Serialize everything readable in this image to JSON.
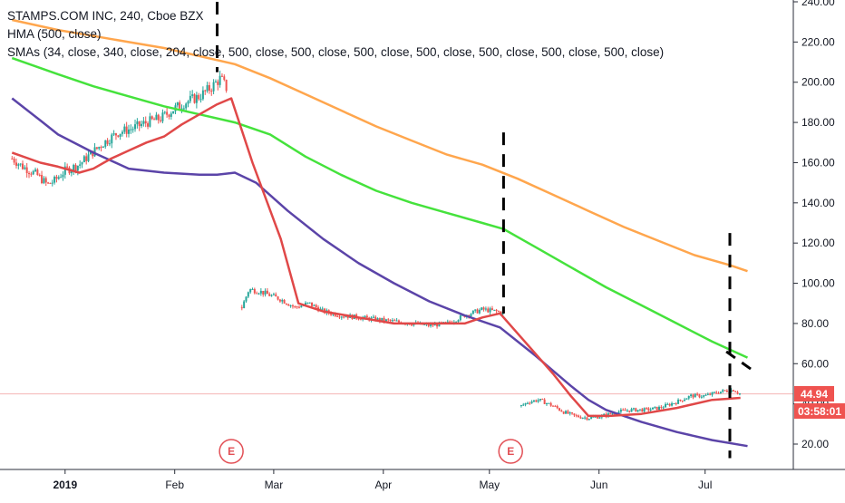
{
  "legend": {
    "symbol_line": "STAMPS.COM INC, 240, Cboe BZX",
    "hma_line": "HMA (500, close)",
    "sma_line": "SMAs (34, close, 340, close, 204, close, 500, close, 500, close, 500, close, 500, close, 500, close, 500, close, 500, close)"
  },
  "colors": {
    "hma": "#e04848",
    "sma_34": "#5b44a8",
    "sma_204": "#45e23c",
    "sma_340": "#ffa64d",
    "candle_up": "#26a69a",
    "candle_down": "#ef5350",
    "price_line": "#f5b5b5",
    "badge": "#ef5350",
    "earnings": "#e24f55"
  },
  "price_badge": {
    "price": "44.94",
    "countdown": "03:58:01"
  },
  "earnings_labels": [
    "E",
    "E"
  ],
  "chart_data": {
    "type": "line",
    "title": "STAMPS.COM INC, 240, Cboe BZX",
    "xlabel": "",
    "ylabel": "",
    "ylim": [
      20,
      240
    ],
    "y_ticks": [
      "240.00",
      "220.00",
      "200.00",
      "180.00",
      "160.00",
      "140.00",
      "120.00",
      "100.00",
      "80.00",
      "60.00",
      "40.00",
      "20.00"
    ],
    "x_ticks": [
      {
        "label": "2019",
        "t": 2,
        "bold": true
      },
      {
        "label": "Feb",
        "t": 33
      },
      {
        "label": "Mar",
        "t": 61
      },
      {
        "label": "Apr",
        "t": 92
      },
      {
        "label": "May",
        "t": 122
      },
      {
        "label": "Jun",
        "t": 153
      },
      {
        "label": "Jul",
        "t": 183
      }
    ],
    "grid": false,
    "last_price": 44.94,
    "price_segments": [
      {
        "points": [
          [
            -13,
            162
          ],
          [
            -10,
            158
          ],
          [
            -6,
            154
          ],
          [
            -3,
            149
          ],
          [
            -1,
            151
          ],
          [
            2,
            156
          ],
          [
            6,
            159
          ],
          [
            9,
            164
          ],
          [
            13,
            170
          ],
          [
            17,
            175
          ],
          [
            21,
            177
          ],
          [
            25,
            180
          ],
          [
            29,
            182
          ],
          [
            33,
            187
          ],
          [
            36,
            190
          ],
          [
            40,
            193
          ],
          [
            43,
            197
          ],
          [
            46,
            202
          ],
          [
            48,
            196
          ]
        ]
      },
      {
        "points": [
          [
            52,
            88
          ],
          [
            54,
            97
          ],
          [
            57,
            96
          ],
          [
            60,
            94
          ],
          [
            63,
            92
          ],
          [
            67,
            88
          ],
          [
            71,
            90
          ],
          [
            75,
            86
          ],
          [
            80,
            84
          ],
          [
            85,
            83
          ],
          [
            90,
            82
          ],
          [
            95,
            81
          ],
          [
            100,
            80
          ],
          [
            105,
            79
          ],
          [
            110,
            80
          ],
          [
            115,
            84
          ],
          [
            120,
            87
          ],
          [
            124,
            86
          ],
          [
            126,
            85
          ]
        ]
      },
      {
        "points": [
          [
            131,
            39
          ],
          [
            133,
            41
          ],
          [
            136,
            42
          ],
          [
            140,
            39
          ],
          [
            143,
            36
          ],
          [
            146,
            34
          ],
          [
            150,
            33
          ],
          [
            154,
            34
          ],
          [
            158,
            36
          ],
          [
            162,
            37
          ],
          [
            166,
            37
          ],
          [
            170,
            38
          ],
          [
            175,
            41
          ],
          [
            179,
            44
          ],
          [
            183,
            44
          ],
          [
            187,
            46
          ],
          [
            191,
            47
          ],
          [
            193,
            44.94
          ]
        ]
      }
    ],
    "series": [
      {
        "name": "HMA (500, close)",
        "key": "hma",
        "points": [
          [
            -13,
            165
          ],
          [
            -5,
            160
          ],
          [
            0,
            158
          ],
          [
            6,
            155
          ],
          [
            10,
            157
          ],
          [
            15,
            162
          ],
          [
            20,
            166
          ],
          [
            25,
            170
          ],
          [
            30,
            173
          ],
          [
            35,
            179
          ],
          [
            40,
            184
          ],
          [
            45,
            189
          ],
          [
            49,
            192
          ],
          [
            55,
            160
          ],
          [
            63,
            122
          ],
          [
            68,
            90
          ],
          [
            75,
            86
          ],
          [
            85,
            83
          ],
          [
            95,
            80
          ],
          [
            105,
            80
          ],
          [
            115,
            80
          ],
          [
            120,
            83
          ],
          [
            125,
            85
          ],
          [
            131,
            73
          ],
          [
            140,
            55
          ],
          [
            145,
            44
          ],
          [
            150,
            34
          ],
          [
            156,
            34
          ],
          [
            165,
            35
          ],
          [
            175,
            38
          ],
          [
            185,
            42
          ],
          [
            193,
            43
          ]
        ]
      },
      {
        "name": "SMA (34, close)",
        "key": "sma_34",
        "points": [
          [
            -13,
            192
          ],
          [
            -5,
            181
          ],
          [
            0,
            174
          ],
          [
            10,
            165
          ],
          [
            20,
            157
          ],
          [
            30,
            155
          ],
          [
            40,
            154
          ],
          [
            45,
            154
          ],
          [
            50,
            155
          ],
          [
            56,
            150
          ],
          [
            65,
            136
          ],
          [
            75,
            122
          ],
          [
            85,
            110
          ],
          [
            95,
            100
          ],
          [
            105,
            91
          ],
          [
            115,
            84
          ],
          [
            125,
            78
          ],
          [
            135,
            64
          ],
          [
            145,
            49
          ],
          [
            150,
            42
          ],
          [
            155,
            37
          ],
          [
            165,
            31
          ],
          [
            175,
            26
          ],
          [
            185,
            22
          ],
          [
            195,
            19
          ]
        ]
      },
      {
        "name": "SMA (204, close)",
        "key": "sma_204",
        "points": [
          [
            -13,
            212
          ],
          [
            0,
            204
          ],
          [
            10,
            198
          ],
          [
            20,
            193
          ],
          [
            30,
            188
          ],
          [
            40,
            184
          ],
          [
            50,
            180
          ],
          [
            60,
            174
          ],
          [
            70,
            163
          ],
          [
            80,
            154
          ],
          [
            90,
            146
          ],
          [
            100,
            140
          ],
          [
            110,
            135
          ],
          [
            120,
            130
          ],
          [
            126,
            127
          ],
          [
            135,
            118
          ],
          [
            145,
            108
          ],
          [
            155,
            98
          ],
          [
            165,
            89
          ],
          [
            175,
            80
          ],
          [
            185,
            71
          ],
          [
            195,
            63
          ]
        ]
      },
      {
        "name": "SMA (340, close)",
        "key": "sma_340",
        "points": [
          [
            -13,
            231
          ],
          [
            0,
            226
          ],
          [
            10,
            223
          ],
          [
            20,
            220
          ],
          [
            30,
            217
          ],
          [
            40,
            213
          ],
          [
            50,
            209
          ],
          [
            60,
            202
          ],
          [
            70,
            194
          ],
          [
            80,
            186
          ],
          [
            90,
            178
          ],
          [
            100,
            171
          ],
          [
            110,
            164
          ],
          [
            120,
            159
          ],
          [
            130,
            152
          ],
          [
            140,
            144
          ],
          [
            150,
            136
          ],
          [
            160,
            128
          ],
          [
            170,
            121
          ],
          [
            180,
            114
          ],
          [
            190,
            109
          ],
          [
            195,
            106
          ]
        ]
      }
    ],
    "annotations": [
      {
        "type": "dashed-vline",
        "t": 45,
        "y1": 240,
        "y2": 205
      },
      {
        "type": "dashed-vline",
        "t": 126,
        "y1": 175,
        "y2": 85
      },
      {
        "type": "dashed-vline",
        "t": 190,
        "y1": 125,
        "y2": 13
      },
      {
        "type": "dashed-diagonal",
        "t1": 189,
        "y1": 66,
        "t2": 197,
        "y2": 56
      },
      {
        "type": "earnings",
        "label": "E",
        "t": 49
      },
      {
        "type": "earnings",
        "label": "E",
        "t": 128
      }
    ]
  }
}
